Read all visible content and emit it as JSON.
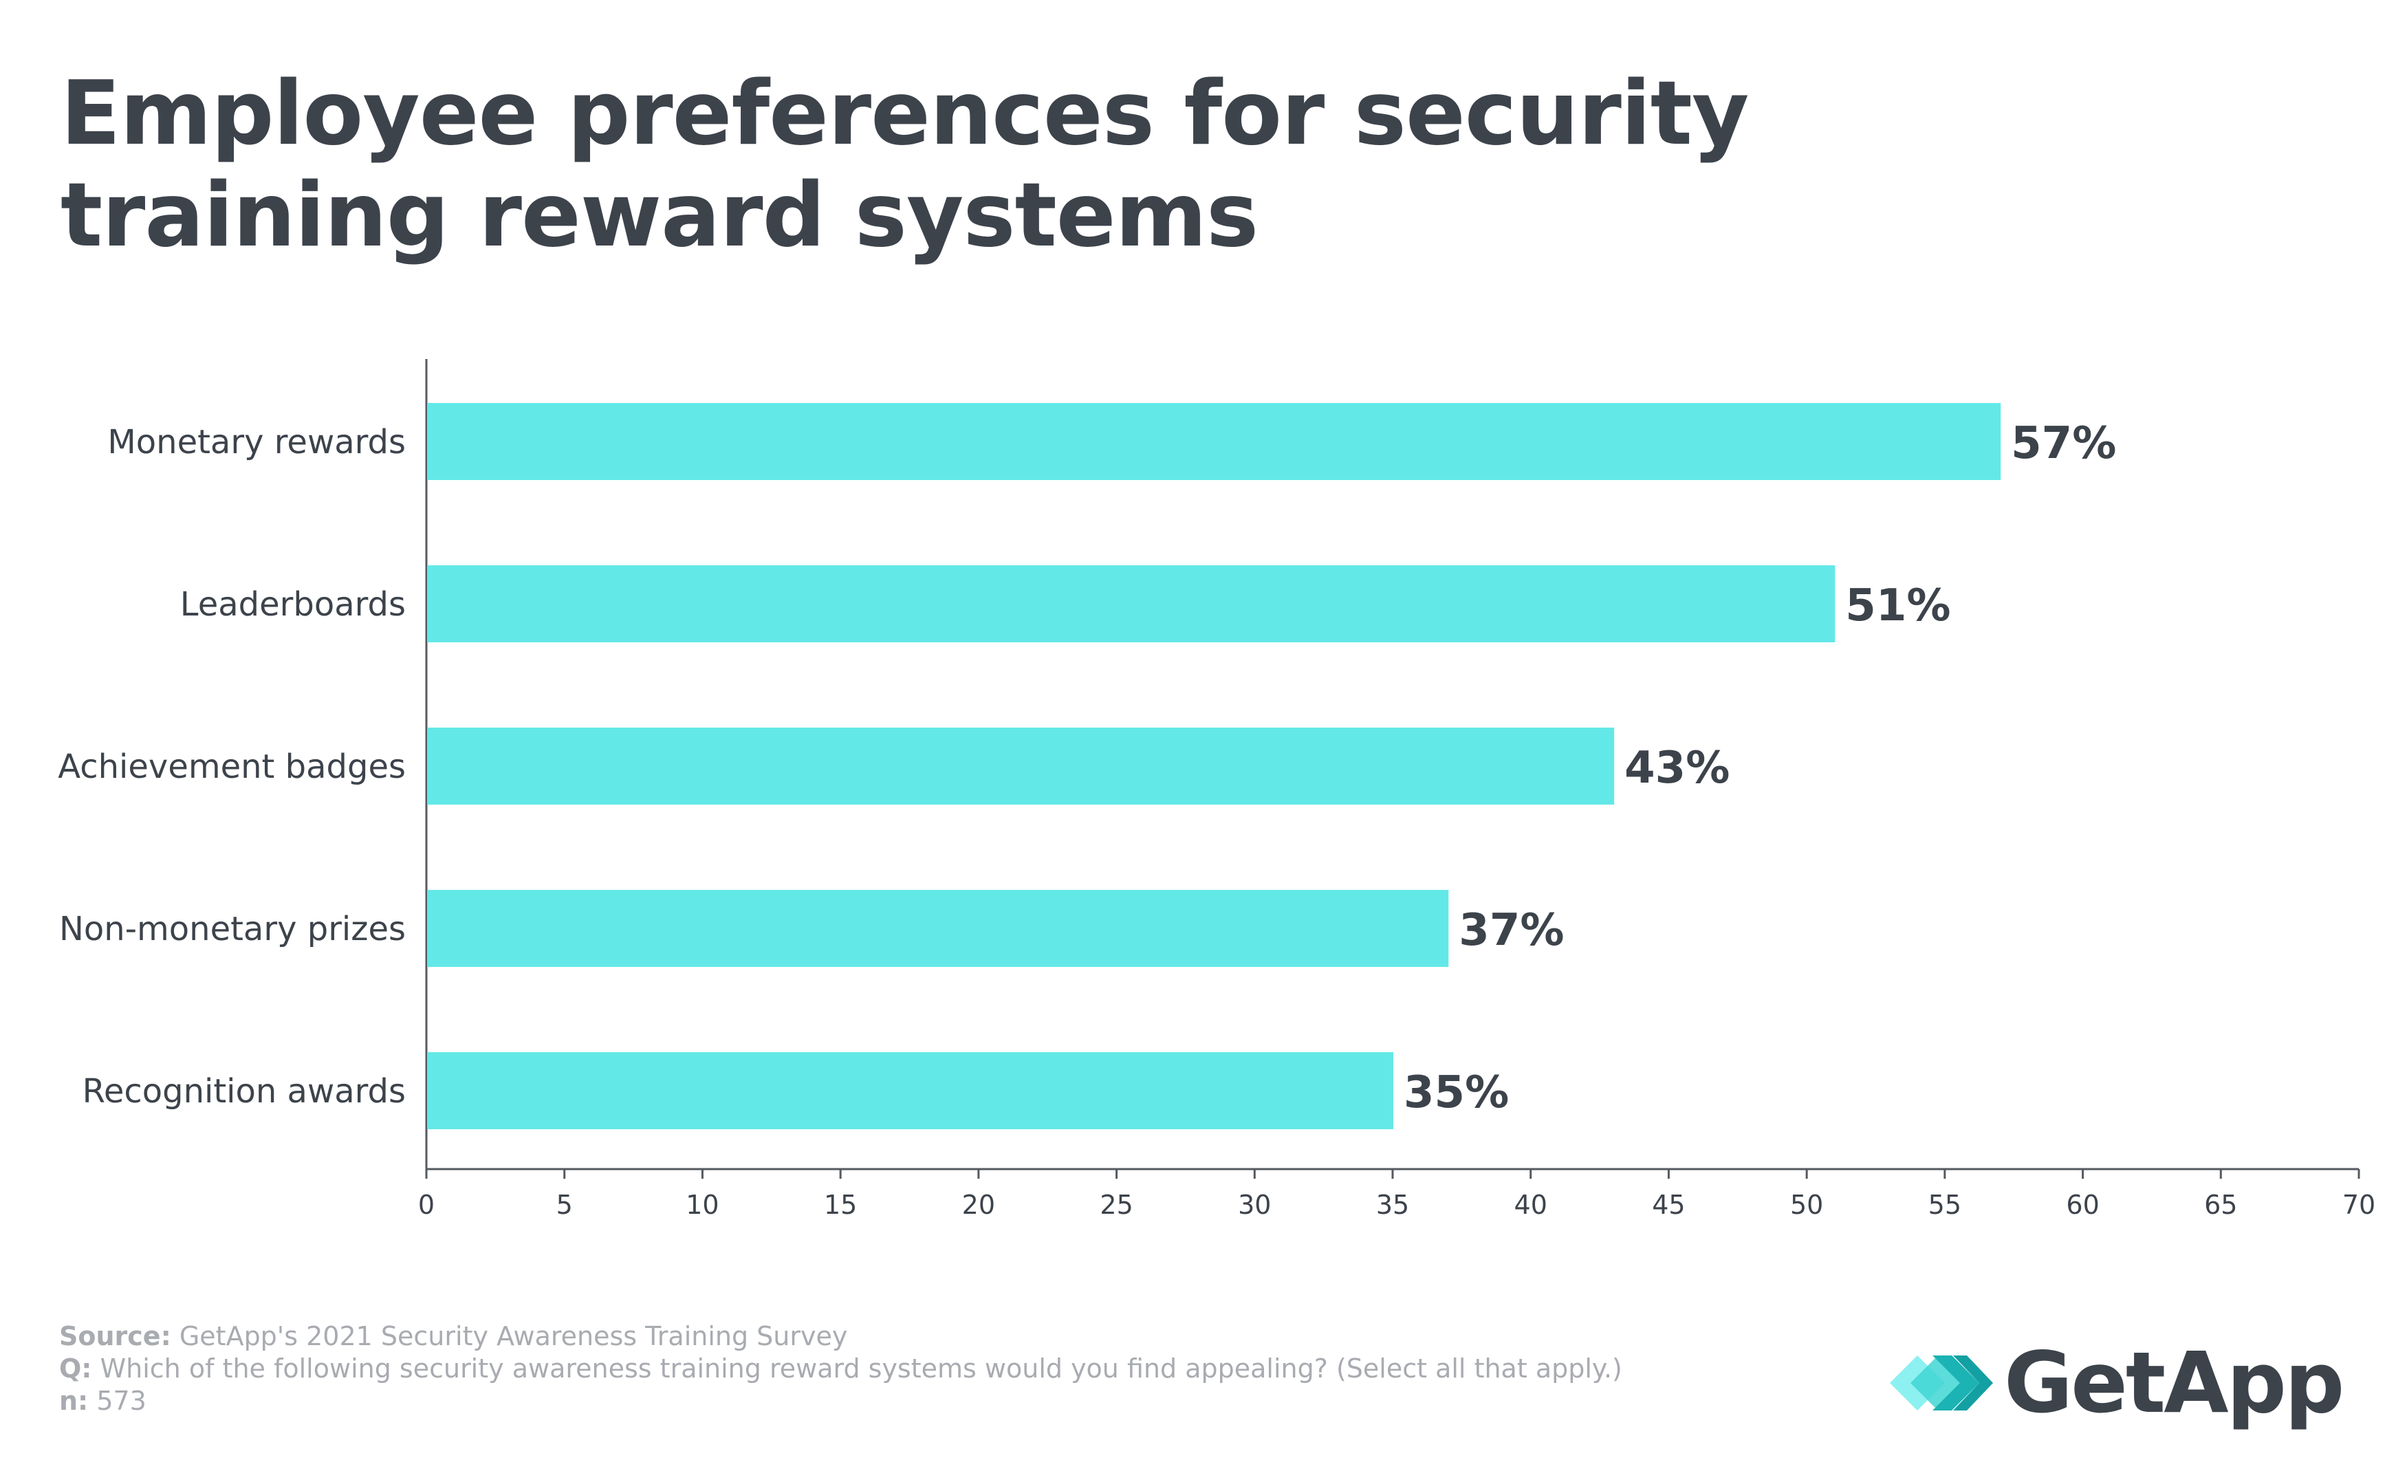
{
  "title": {
    "line1": "Employee preferences for security",
    "line2": "training reward systems"
  },
  "colors": {
    "bar": "#63e8e8",
    "text_dark": "#3d434b",
    "axis": "#555a60",
    "footer": "#a8abb0",
    "logo_teal_dark": "#1bb3b3",
    "logo_teal_light": "#7ff0ee"
  },
  "chart_data": {
    "type": "bar",
    "orientation": "horizontal",
    "categories": [
      "Monetary rewards",
      "Leaderboards",
      "Achievement badges",
      "Non-monetary prizes",
      "Recognition awards"
    ],
    "values": [
      57,
      51,
      43,
      37,
      35
    ],
    "value_labels": [
      "57%",
      "51%",
      "43%",
      "37%",
      "35%"
    ],
    "xlim": [
      0,
      70
    ],
    "xticks": [
      "0",
      "5",
      "10",
      "15",
      "20",
      "25",
      "30",
      "35",
      "40",
      "45",
      "50",
      "55",
      "60",
      "65",
      "70"
    ],
    "title": "Employee preferences for security training reward systems",
    "xlabel": "",
    "ylabel": "",
    "grid": false
  },
  "footer": {
    "source_label": "Source:",
    "source_text": " GetApp's 2021 Security Awareness Training Survey",
    "question_label": "Q:",
    "question_text": " Which of the following security awareness training reward systems would you find appealing? (Select all that apply.)",
    "n_label": "n:",
    "n_text": " 573"
  },
  "logo": {
    "text": "GetApp",
    "icon": "getapp-chevrons-icon"
  }
}
